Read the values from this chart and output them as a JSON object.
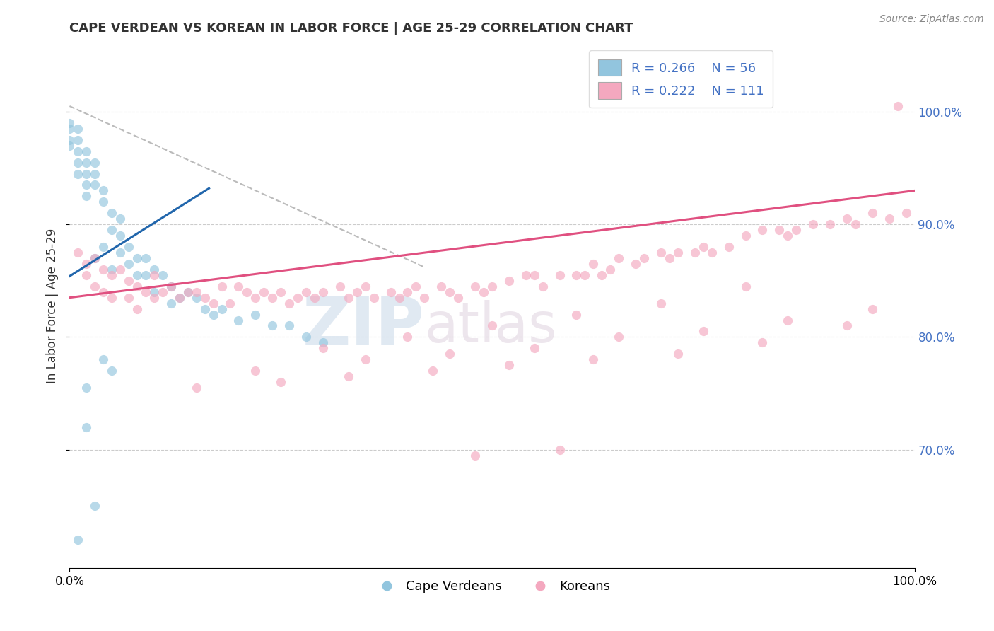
{
  "title": "CAPE VERDEAN VS KOREAN IN LABOR FORCE | AGE 25-29 CORRELATION CHART",
  "source_text": "Source: ZipAtlas.com",
  "ylabel": "In Labor Force | Age 25-29",
  "xlim": [
    0.0,
    1.0
  ],
  "ylim": [
    0.595,
    1.06
  ],
  "x_ticks": [
    0.0,
    1.0
  ],
  "y_ticks": [
    0.7,
    0.8,
    0.9,
    1.0
  ],
  "blue_color": "#92c5de",
  "pink_color": "#f4a8bf",
  "trend_blue_color": "#2166ac",
  "trend_pink_color": "#e05080",
  "ref_line_color": "#aaaaaa",
  "label_blue": "Cape Verdeans",
  "label_pink": "Koreans",
  "legend_r_blue": "R = 0.266",
  "legend_n_blue": "N = 56",
  "legend_r_pink": "R = 0.222",
  "legend_n_pink": "N = 111",
  "watermark_zip": "ZIP",
  "watermark_atlas": "atlas",
  "right_tick_color": "#4472c4",
  "title_color": "#333333",
  "source_color": "#888888",
  "blue_dots_x": [
    0.0,
    0.0,
    0.0,
    0.0,
    0.01,
    0.01,
    0.01,
    0.01,
    0.01,
    0.02,
    0.02,
    0.02,
    0.02,
    0.02,
    0.03,
    0.03,
    0.03,
    0.03,
    0.04,
    0.04,
    0.04,
    0.05,
    0.05,
    0.05,
    0.06,
    0.06,
    0.06,
    0.07,
    0.07,
    0.08,
    0.08,
    0.09,
    0.09,
    0.1,
    0.1,
    0.11,
    0.12,
    0.12,
    0.13,
    0.14,
    0.15,
    0.16,
    0.17,
    0.18,
    0.2,
    0.22,
    0.24,
    0.26,
    0.28,
    0.3,
    0.04,
    0.05,
    0.02,
    0.02,
    0.03,
    0.01
  ],
  "blue_dots_y": [
    0.99,
    0.985,
    0.975,
    0.97,
    0.985,
    0.975,
    0.965,
    0.955,
    0.945,
    0.965,
    0.955,
    0.945,
    0.935,
    0.925,
    0.955,
    0.945,
    0.935,
    0.87,
    0.93,
    0.92,
    0.88,
    0.91,
    0.895,
    0.86,
    0.905,
    0.89,
    0.875,
    0.88,
    0.865,
    0.87,
    0.855,
    0.87,
    0.855,
    0.86,
    0.84,
    0.855,
    0.845,
    0.83,
    0.835,
    0.84,
    0.835,
    0.825,
    0.82,
    0.825,
    0.815,
    0.82,
    0.81,
    0.81,
    0.8,
    0.795,
    0.78,
    0.77,
    0.755,
    0.72,
    0.65,
    0.62
  ],
  "pink_dots_x": [
    0.01,
    0.02,
    0.02,
    0.03,
    0.03,
    0.04,
    0.04,
    0.05,
    0.05,
    0.06,
    0.07,
    0.07,
    0.08,
    0.08,
    0.09,
    0.1,
    0.1,
    0.11,
    0.12,
    0.13,
    0.14,
    0.15,
    0.16,
    0.17,
    0.18,
    0.19,
    0.2,
    0.21,
    0.22,
    0.23,
    0.24,
    0.25,
    0.26,
    0.27,
    0.28,
    0.29,
    0.3,
    0.32,
    0.33,
    0.34,
    0.35,
    0.36,
    0.38,
    0.39,
    0.4,
    0.41,
    0.42,
    0.44,
    0.45,
    0.46,
    0.48,
    0.49,
    0.5,
    0.52,
    0.54,
    0.55,
    0.56,
    0.58,
    0.6,
    0.61,
    0.62,
    0.63,
    0.64,
    0.65,
    0.67,
    0.68,
    0.7,
    0.71,
    0.72,
    0.74,
    0.75,
    0.76,
    0.78,
    0.8,
    0.82,
    0.84,
    0.85,
    0.86,
    0.88,
    0.9,
    0.92,
    0.93,
    0.95,
    0.97,
    0.98,
    0.99,
    0.3,
    0.4,
    0.5,
    0.6,
    0.7,
    0.8,
    0.22,
    0.35,
    0.45,
    0.55,
    0.65,
    0.75,
    0.85,
    0.95,
    0.15,
    0.25,
    0.33,
    0.43,
    0.52,
    0.62,
    0.72,
    0.82,
    0.92,
    0.48,
    0.58
  ],
  "pink_dots_y": [
    0.875,
    0.865,
    0.855,
    0.87,
    0.845,
    0.86,
    0.84,
    0.855,
    0.835,
    0.86,
    0.85,
    0.835,
    0.845,
    0.825,
    0.84,
    0.855,
    0.835,
    0.84,
    0.845,
    0.835,
    0.84,
    0.84,
    0.835,
    0.83,
    0.845,
    0.83,
    0.845,
    0.84,
    0.835,
    0.84,
    0.835,
    0.84,
    0.83,
    0.835,
    0.84,
    0.835,
    0.84,
    0.845,
    0.835,
    0.84,
    0.845,
    0.835,
    0.84,
    0.835,
    0.84,
    0.845,
    0.835,
    0.845,
    0.84,
    0.835,
    0.845,
    0.84,
    0.845,
    0.85,
    0.855,
    0.855,
    0.845,
    0.855,
    0.855,
    0.855,
    0.865,
    0.855,
    0.86,
    0.87,
    0.865,
    0.87,
    0.875,
    0.87,
    0.875,
    0.875,
    0.88,
    0.875,
    0.88,
    0.89,
    0.895,
    0.895,
    0.89,
    0.895,
    0.9,
    0.9,
    0.905,
    0.9,
    0.91,
    0.905,
    1.005,
    0.91,
    0.79,
    0.8,
    0.81,
    0.82,
    0.83,
    0.845,
    0.77,
    0.78,
    0.785,
    0.79,
    0.8,
    0.805,
    0.815,
    0.825,
    0.755,
    0.76,
    0.765,
    0.77,
    0.775,
    0.78,
    0.785,
    0.795,
    0.81,
    0.695,
    0.7
  ],
  "blue_trend_x0": 0.0,
  "blue_trend_x1": 0.165,
  "blue_trend_y0": 0.854,
  "blue_trend_y1": 0.932,
  "pink_trend_x0": 0.0,
  "pink_trend_x1": 1.0,
  "pink_trend_y0": 0.835,
  "pink_trend_y1": 0.93,
  "ref_line_x0": 0.0,
  "ref_line_x1": 0.42,
  "ref_line_y0": 1.005,
  "ref_line_y1": 0.862
}
